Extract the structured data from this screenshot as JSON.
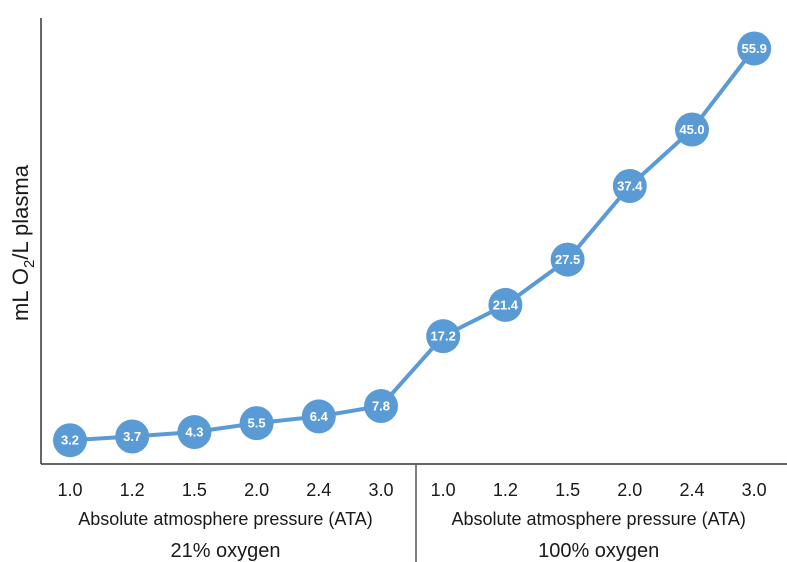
{
  "chart_data": {
    "type": "line",
    "ylabel_parts": [
      "mL O",
      "2",
      "/L plasma"
    ],
    "ylim": [
      0,
      60
    ],
    "grid": false,
    "colors": {
      "line": "#5b9bd5",
      "marker": "#5b9bd5",
      "label": "#ffffff",
      "axis": "#333333"
    },
    "groups": [
      {
        "title": "21% oxygen",
        "xlabel": "Absolute atmosphere pressure (ATA)",
        "categories": [
          "1.0",
          "1.2",
          "1.5",
          "2.0",
          "2.4",
          "3.0"
        ]
      },
      {
        "title": "100% oxygen",
        "xlabel": "Absolute atmosphere pressure (ATA)",
        "categories": [
          "1.0",
          "1.2",
          "1.5",
          "2.0",
          "2.4",
          "3.0"
        ]
      }
    ],
    "values": [
      3.2,
      3.7,
      4.3,
      5.5,
      6.4,
      7.8,
      17.2,
      21.4,
      27.5,
      37.4,
      45.0,
      55.9
    ],
    "value_labels": [
      "3.2",
      "3.7",
      "4.3",
      "5.5",
      "6.4",
      "7.8",
      "17.2",
      "21.4",
      "27.5",
      "37.4",
      "45.0",
      "55.9"
    ]
  }
}
